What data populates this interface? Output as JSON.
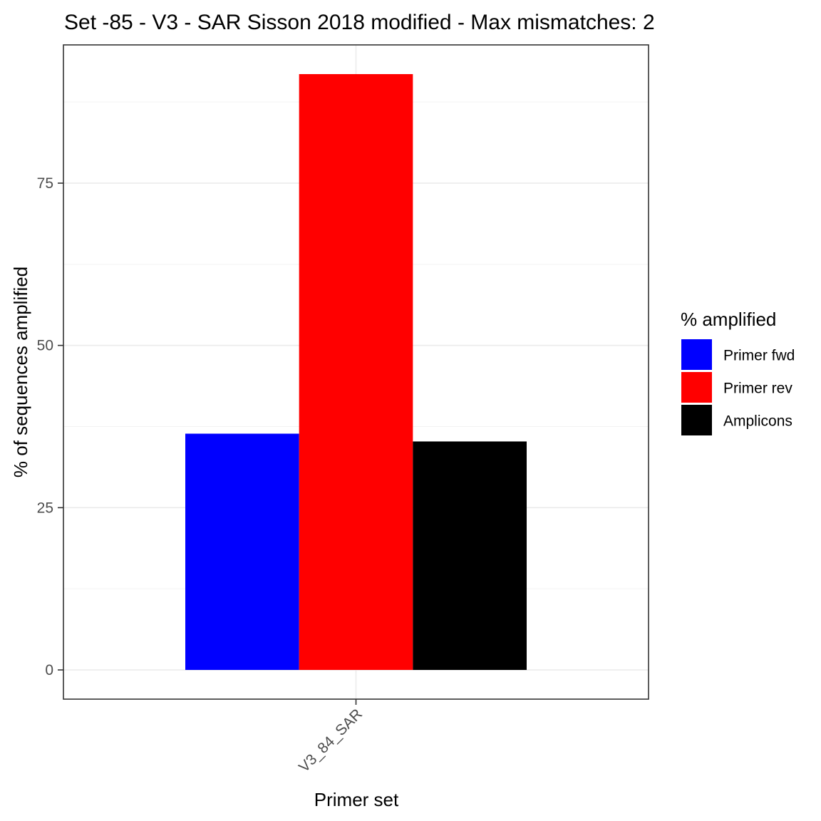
{
  "chart_data": {
    "type": "bar",
    "title": "Set -85 - V3 - SAR Sisson 2018 modified - Max mismatches: 2",
    "xlabel": "Primer set",
    "ylabel": "% of sequences amplified",
    "categories": [
      "V3_84_SAR"
    ],
    "series": [
      {
        "name": "Primer fwd",
        "values": [
          36.4
        ],
        "color": "#0000ff"
      },
      {
        "name": "Primer rev",
        "values": [
          91.8
        ],
        "color": "#ff0000"
      },
      {
        "name": "Amplicons",
        "values": [
          35.2
        ],
        "color": "#000000"
      }
    ],
    "ylim": [
      -4.5,
      96.3
    ],
    "yticks": [
      0,
      25,
      50,
      75
    ],
    "ytick_labels": [
      "0",
      "25",
      "50",
      "75"
    ],
    "grid": true,
    "legend": {
      "title": "% amplified",
      "position": "right"
    }
  }
}
